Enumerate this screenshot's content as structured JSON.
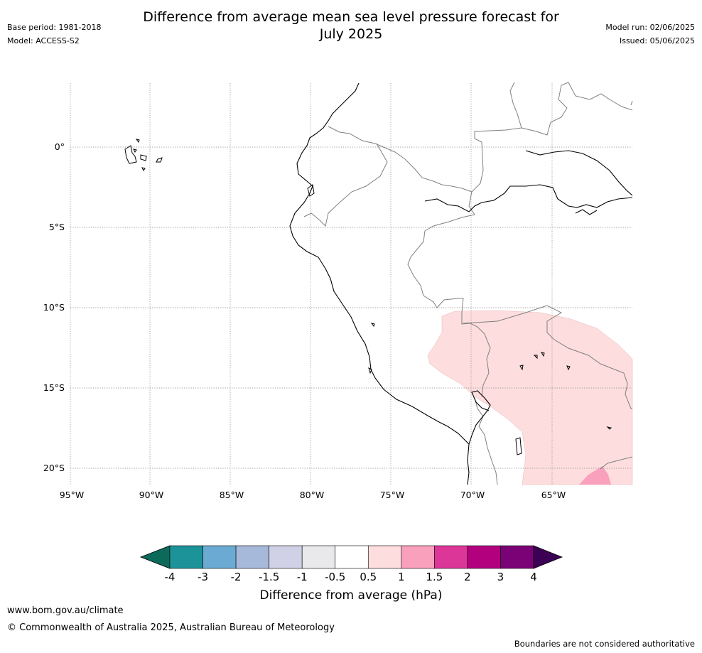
{
  "header": {
    "title_line1": "Difference from average mean sea level pressure forecast for",
    "title_line2": "July 2025",
    "base_period": "Base period: 1981-2018",
    "model": "Model: ACCESS-S2",
    "model_run": "Model run: 02/06/2025",
    "issued": "Issued: 05/06/2025"
  },
  "map": {
    "lat_labels": [
      "0°",
      "5°S",
      "10°S",
      "15°S",
      "20°S"
    ],
    "lon_labels": [
      "95°W",
      "90°W",
      "85°W",
      "80°W",
      "75°W",
      "70°W",
      "65°W"
    ],
    "fill_colors": {
      "anomaly_0_5_to_1": "#fddddd",
      "anomaly_1_to_1_5": "#f9a0bc"
    }
  },
  "colorbar": {
    "label": "Difference from average (hPa)",
    "ticks": [
      "-4",
      "-3",
      "-2",
      "-1.5",
      "-1",
      "-0.5",
      "0.5",
      "1",
      "1.5",
      "2",
      "3",
      "4"
    ],
    "colors": [
      "#0c6a5b",
      "#1c9399",
      "#6aaad3",
      "#a7b9da",
      "#d0d0e6",
      "#e9e8eb",
      "#ffffff",
      "#fddddd",
      "#f9a0bc",
      "#dc3699",
      "#b2007f",
      "#7b0176",
      "#3c0054"
    ]
  },
  "footer": {
    "url": "www.bom.gov.au/climate",
    "copyright": "© Commonwealth of Australia 2025, Australian Bureau of Meteorology",
    "disclaimer": "Boundaries are not considered authoritative"
  }
}
